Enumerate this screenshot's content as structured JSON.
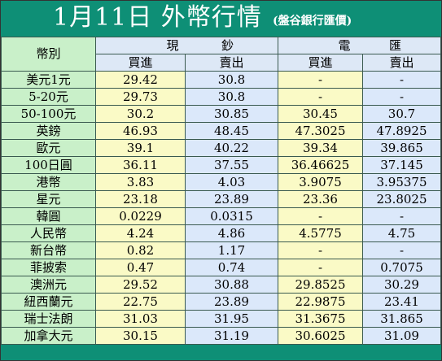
{
  "title": "1月11日 外幣行情",
  "subtitle": "(盤谷銀行匯價)",
  "headers": {
    "currency": "幣別",
    "cash_left": "現",
    "cash_right": "鈔",
    "wire_left": "電",
    "wire_right": "匯",
    "buy": "買進",
    "sell": "賣出"
  },
  "colors": {
    "title_bg": "#0e8f76",
    "currency_col": "#c9f0c9",
    "yellow_col": "#fafac6",
    "blue_col": "#dbe8fa"
  },
  "rows": [
    {
      "currency": "美元1元",
      "cash_buy": "29.42",
      "cash_sell": "30.8",
      "wire_buy": "-",
      "wire_sell": "-"
    },
    {
      "currency": "5-20元",
      "cash_buy": "29.73",
      "cash_sell": "30.8",
      "wire_buy": "-",
      "wire_sell": "-"
    },
    {
      "currency": "50-100元",
      "cash_buy": "30.2",
      "cash_sell": "30.85",
      "wire_buy": "30.45",
      "wire_sell": "30.7"
    },
    {
      "currency": "英鎊",
      "cash_buy": "46.93",
      "cash_sell": "48.45",
      "wire_buy": "47.3025",
      "wire_sell": "47.8925"
    },
    {
      "currency": "歐元",
      "cash_buy": "39.1",
      "cash_sell": "40.22",
      "wire_buy": "39.34",
      "wire_sell": "39.865"
    },
    {
      "currency": "100日圓",
      "cash_buy": "36.11",
      "cash_sell": "37.55",
      "wire_buy": "36.46625",
      "wire_sell": "37.145"
    },
    {
      "currency": "港幣",
      "cash_buy": "3.83",
      "cash_sell": "4.03",
      "wire_buy": "3.9075",
      "wire_sell": "3.95375"
    },
    {
      "currency": "星元",
      "cash_buy": "23.18",
      "cash_sell": "23.89",
      "wire_buy": "23.36",
      "wire_sell": "23.8025"
    },
    {
      "currency": "韓圓",
      "cash_buy": "0.0229",
      "cash_sell": "0.0315",
      "wire_buy": "-",
      "wire_sell": "-"
    },
    {
      "currency": "人民幣",
      "cash_buy": "4.24",
      "cash_sell": "4.86",
      "wire_buy": "4.5775",
      "wire_sell": "4.75"
    },
    {
      "currency": "新台幣",
      "cash_buy": "0.82",
      "cash_sell": "1.17",
      "wire_buy": "-",
      "wire_sell": "-"
    },
    {
      "currency": "菲披索",
      "cash_buy": "0.47",
      "cash_sell": "0.74",
      "wire_buy": "-",
      "wire_sell": "0.7075"
    },
    {
      "currency": "澳洲元",
      "cash_buy": "29.52",
      "cash_sell": "30.88",
      "wire_buy": "29.8525",
      "wire_sell": "30.29"
    },
    {
      "currency": "紐西蘭元",
      "cash_buy": "22.75",
      "cash_sell": "23.89",
      "wire_buy": "22.9875",
      "wire_sell": "23.41"
    },
    {
      "currency": "瑞士法朗",
      "cash_buy": "31.03",
      "cash_sell": "31.95",
      "wire_buy": "31.3675",
      "wire_sell": "31.865"
    },
    {
      "currency": "加拿大元",
      "cash_buy": "30.15",
      "cash_sell": "31.19",
      "wire_buy": "30.6025",
      "wire_sell": "31.09"
    }
  ]
}
